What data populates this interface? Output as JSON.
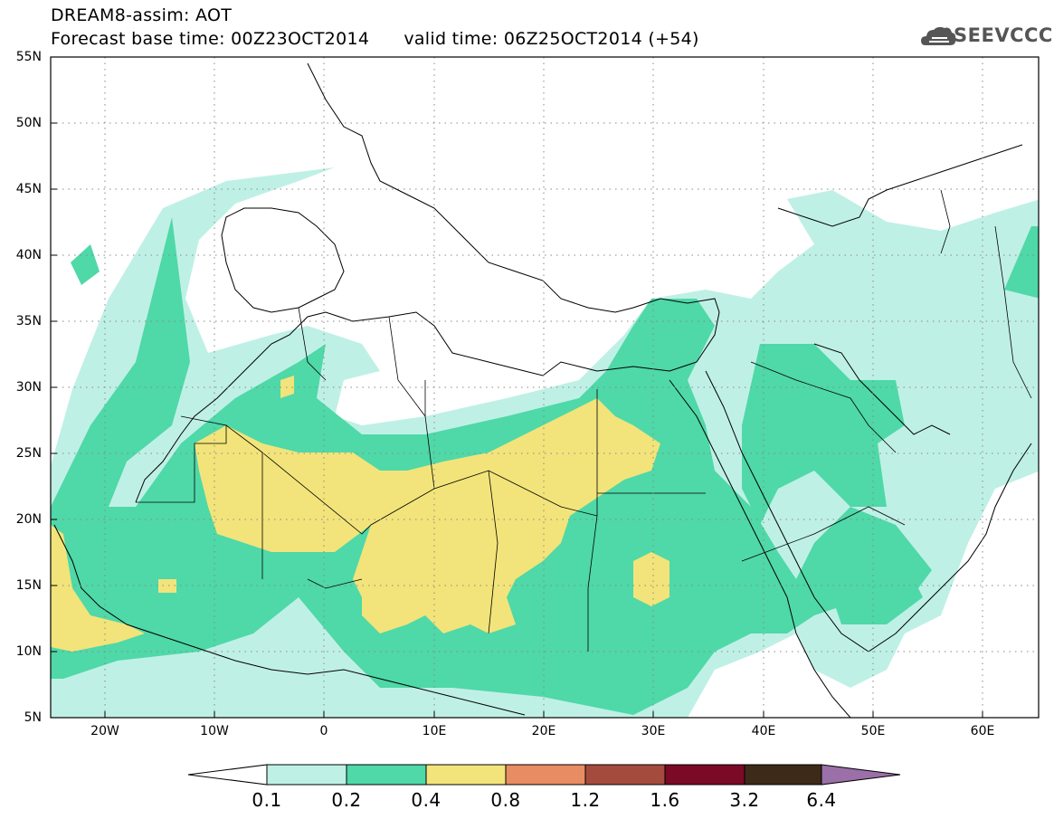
{
  "header": {
    "line1": "DREAM8-assim: AOT",
    "line2": "Forecast base time: 00Z23OCT2014      valid time: 06Z25OCT2014 (+54)"
  },
  "logo": {
    "text": "SEEVCCC",
    "icon": "cloud-logo-icon"
  },
  "axes": {
    "lat_labels": [
      "55N",
      "50N",
      "45N",
      "40N",
      "35N",
      "30N",
      "25N",
      "20N",
      "15N",
      "10N",
      "5N"
    ],
    "lon_labels": [
      "20W",
      "10W",
      "0",
      "10E",
      "20E",
      "30E",
      "40E",
      "50E",
      "60E"
    ],
    "lon_range": [
      -25,
      65
    ],
    "lat_range": [
      5,
      55
    ],
    "grid": "dotted"
  },
  "colorbar": {
    "labels": [
      "0.1",
      "0.2",
      "0.4",
      "0.8",
      "1.2",
      "1.6",
      "3.2",
      "6.4"
    ],
    "colors": [
      "#ffffff",
      "#bff0e6",
      "#4fd8a8",
      "#f2e47a",
      "#e88c63",
      "#a54b3e",
      "#7a0a26",
      "#3d2a19",
      "#9b6fa8"
    ]
  }
}
